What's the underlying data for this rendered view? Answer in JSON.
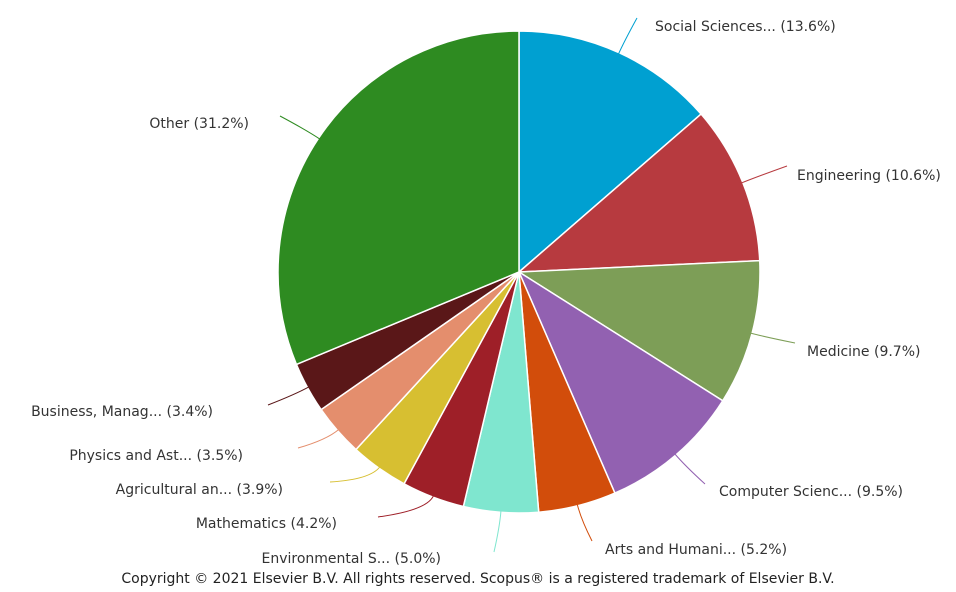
{
  "chart_data": {
    "type": "pie",
    "slices": [
      {
        "label": "Social Sciences... (13.6%)",
        "value": 13.6,
        "color": "#00a0d1"
      },
      {
        "label": "Engineering (10.6%)",
        "value": 10.6,
        "color": "#b73a3f"
      },
      {
        "label": "Medicine (9.7%)",
        "value": 9.7,
        "color": "#7d9e57"
      },
      {
        "label": "Computer Scienc... (9.5%)",
        "value": 9.5,
        "color": "#9261b1"
      },
      {
        "label": "Arts and Humani... (5.2%)",
        "value": 5.2,
        "color": "#d24d0b"
      },
      {
        "label": "Environmental S... (5.0%)",
        "value": 5.0,
        "color": "#7fe6cf"
      },
      {
        "label": "Mathematics (4.2%)",
        "value": 4.2,
        "color": "#9e1f28"
      },
      {
        "label": "Agricultural an... (3.9%)",
        "value": 3.9,
        "color": "#d7bf31"
      },
      {
        "label": "Physics and Ast... (3.5%)",
        "value": 3.5,
        "color": "#e48e6d"
      },
      {
        "label": "Business, Manag... (3.4%)",
        "value": 3.4,
        "color": "#5a1718"
      },
      {
        "label": "Other (31.2%)",
        "value": 31.2,
        "color": "#2e8b21"
      }
    ]
  },
  "footer": {
    "copyright": "Copyright © 2021 Elsevier B.V. All rights reserved. Scopus® is a registered trademark of Elsevier B.V."
  }
}
